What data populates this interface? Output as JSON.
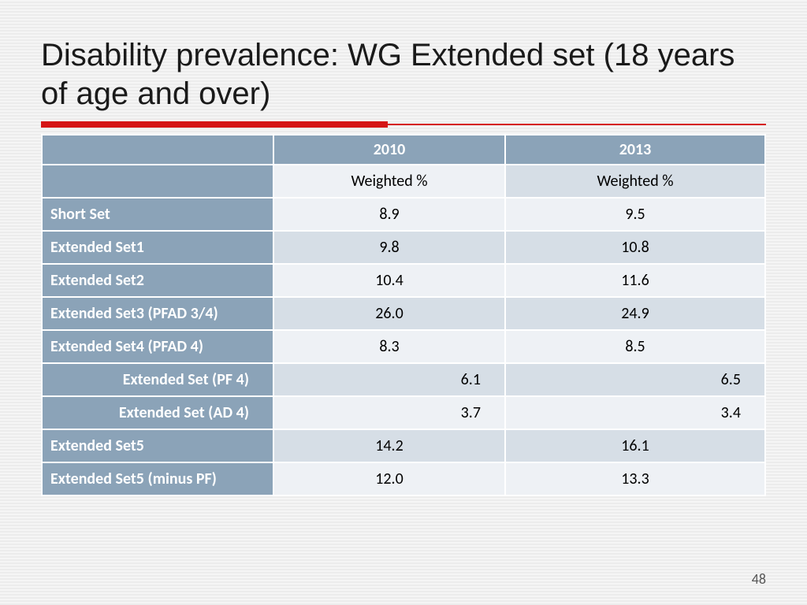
{
  "title": "Disability prevalence: WG Extended set (18 years of age and over)",
  "accent_color": "#d51516",
  "accent_thin_color": "#d51516",
  "columns": {
    "year1": "2010",
    "year2": "2013",
    "sub": "Weighted %"
  },
  "colors": {
    "header_bg": "#8ba3b8",
    "stripe_even": "#d6dee6",
    "stripe_odd": "#eef1f5",
    "white": "#ffffff",
    "text": "#000000"
  },
  "rows": [
    {
      "label": "Short Set",
      "indent": false,
      "v2010": "8.9",
      "v2013": "9.5",
      "align": "center"
    },
    {
      "label": "Extended Set1",
      "indent": false,
      "v2010": "9.8",
      "v2013": "10.8",
      "align": "center"
    },
    {
      "label": "Extended Set2",
      "indent": false,
      "v2010": "10.4",
      "v2013": "11.6",
      "align": "center"
    },
    {
      "label": "Extended Set3 (PFAD 3/4)",
      "indent": false,
      "v2010": "26.0",
      "v2013": "24.9",
      "align": "center"
    },
    {
      "label": "Extended Set4 (PFAD 4)",
      "indent": false,
      "v2010": "8.3",
      "v2013": "8.5",
      "align": "center"
    },
    {
      "label": "Extended Set (PF 4)",
      "indent": true,
      "v2010": "6.1",
      "v2013": "6.5",
      "align": "right"
    },
    {
      "label": "Extended Set (AD 4)",
      "indent": true,
      "v2010": "3.7",
      "v2013": "3.4",
      "align": "right"
    },
    {
      "label": "Extended Set5",
      "indent": false,
      "v2010": "14.2",
      "v2013": "16.1",
      "align": "center"
    },
    {
      "label": "Extended Set5 (minus PF)",
      "indent": false,
      "v2010": "12.0",
      "v2013": "13.3",
      "align": "center"
    }
  ],
  "page_number": "48"
}
